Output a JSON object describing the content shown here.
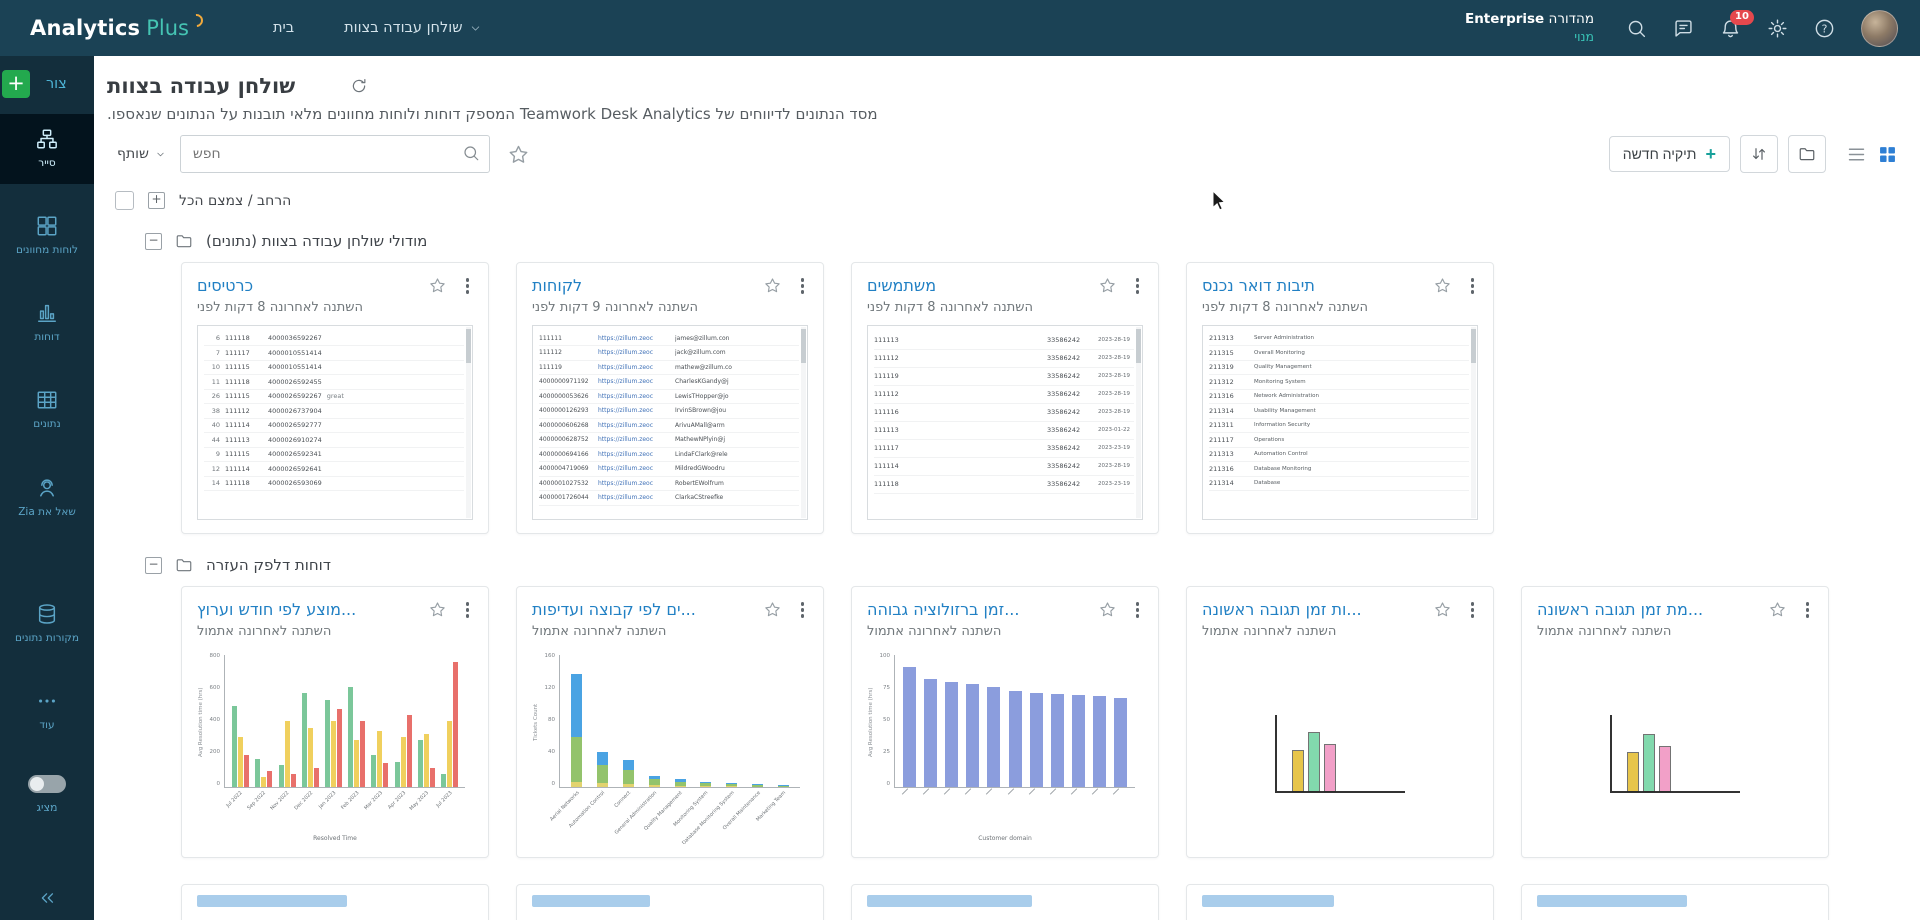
{
  "topbar": {
    "logo_part1": "Analytics",
    "logo_part2": "Plus",
    "nav_home": "בית",
    "nav_workspace": "שולחן עבודה בצוות",
    "edition_word": "מהדורה",
    "edition_name": "Enterprise",
    "edition_sub": "מנוי",
    "notification_count": "10"
  },
  "sidebar": {
    "create_label": "צור",
    "items": [
      {
        "id": "explorer",
        "icon": "explorer-icon",
        "label": "סייר",
        "active": true,
        "gap_before": false
      },
      {
        "id": "dashboards",
        "icon": "dashboards-icon",
        "label": "לוחות מחוונים",
        "active": false,
        "gap_before": false
      },
      {
        "id": "reports",
        "icon": "reports-icon",
        "label": "דוחות",
        "active": false,
        "gap_before": false
      },
      {
        "id": "data",
        "icon": "data-icon",
        "label": "נתונים",
        "active": false,
        "gap_before": false
      },
      {
        "id": "ask-zia",
        "icon": "zia-icon",
        "label": "שאל את Zia",
        "active": false,
        "gap_before": false
      },
      {
        "id": "datasources",
        "icon": "datasources-icon",
        "label": "מקורות נתונים",
        "active": false,
        "gap_before": true
      },
      {
        "id": "more",
        "icon": "more-icon",
        "label": "עוד",
        "active": false,
        "gap_before": false
      }
    ],
    "toggle_label": "מציג"
  },
  "page": {
    "title": "שולחן עבודה בצוות",
    "subtitle": "מסד הנתונים לדיווחים של Teamwork Desk Analytics המספק דוחות ולוחות מחוונים מלאי תובנות על הנתונים שנאספו."
  },
  "toolbar": {
    "filter_label": "שותף",
    "search_placeholder": "חפש",
    "new_folder_label": "תיקיה חדשה",
    "expand_collapse_label": "הרחב / צמצם הכל"
  },
  "sections": [
    {
      "title": "מודולי שולחן עבודה בצוות (נתונים)",
      "cards": [
        {
          "title": "כרטיסים",
          "subtitle": "השתנה לאחרונה 8 דקות לפני",
          "thumb": {
            "type": "table",
            "kind": "tickets",
            "rows": [
              [
                "6",
                "111118",
                "4000036592267",
                ""
              ],
              [
                "7",
                "111117",
                "4000010551414",
                ""
              ],
              [
                "10",
                "111115",
                "4000010551414",
                ""
              ],
              [
                "11",
                "111118",
                "4000026592455",
                ""
              ],
              [
                "26",
                "111115",
                "4000026592267",
                "great"
              ],
              [
                "38",
                "111112",
                "4000026737904",
                ""
              ],
              [
                "40",
                "111114",
                "4000026592777",
                ""
              ],
              [
                "44",
                "111113",
                "4000026910274",
                ""
              ],
              [
                "9",
                "111115",
                "4000026592341",
                ""
              ],
              [
                "12",
                "111114",
                "4000026592641",
                ""
              ],
              [
                "14",
                "111118",
                "4000026593069",
                ""
              ]
            ]
          }
        },
        {
          "title": "לקוחות",
          "subtitle": "השתנה לאחרונה 9 דקות לפני",
          "thumb": {
            "type": "table",
            "kind": "customers",
            "rows": [
              [
                "111111",
                "https://zillum.zeoc",
                "james@zillum.con"
              ],
              [
                "111112",
                "https://zillum.zeoc",
                "jack@zillum.com"
              ],
              [
                "111119",
                "https://zillum.zeoc",
                "mathew@zillum.co"
              ],
              [
                "4000000971192",
                "https://zillum.zeoc",
                "CharlesKGandy@j"
              ],
              [
                "4000000053626",
                "https://zillum.zeoc",
                "LewisTHopper@jo"
              ],
              [
                "4000000126293",
                "https://zillum.zeoc",
                "IrvinSBrown@jou"
              ],
              [
                "4000000606268",
                "https://zillum.zeoc",
                "ArivuAMall@arm"
              ],
              [
                "4000000628752",
                "https://zillum.zeoc",
                "MathewNPlyin@j"
              ],
              [
                "4000000694166",
                "https://zillum.zeoc",
                "LindaFClark@rele"
              ],
              [
                "4000004719069",
                "https://zillum.zeoc",
                "MildredGWoodru"
              ],
              [
                "4000001027532",
                "https://zillum.zeoc",
                "RobertEWolfrum"
              ],
              [
                "4000001726044",
                "https://zillum.zeoc",
                "ClarkaCStreefke"
              ]
            ]
          }
        },
        {
          "title": "משתמשים",
          "subtitle": "השתנה לאחרונה 8 דקות לפני",
          "thumb": {
            "type": "table",
            "kind": "users",
            "rows": [
              [
                "111113",
                "33586242",
                "2023-28-19"
              ],
              [
                "111112",
                "33586242",
                "2023-28-19"
              ],
              [
                "111119",
                "33586242",
                "2023-28-19"
              ],
              [
                "111112",
                "33586242",
                "2023-28-19"
              ],
              [
                "111116",
                "33586242",
                "2023-28-19"
              ],
              [
                "111113",
                "33586242",
                "2023-01-22"
              ],
              [
                "111117",
                "33586242",
                "2023-23-19"
              ],
              [
                "111114",
                "33586242",
                "2023-28-19"
              ],
              [
                "111118",
                "33586242",
                "2023-23-19"
              ]
            ]
          }
        },
        {
          "title": "תיבות דואר נכנס",
          "subtitle": "השתנה לאחרונה 8 דקות לפני",
          "thumb": {
            "type": "table",
            "kind": "inbox",
            "rows": [
              [
                "211313",
                "Server Administration"
              ],
              [
                "211315",
                "Overall Monitoring"
              ],
              [
                "211319",
                "Quality Management"
              ],
              [
                "211312",
                "Monitoring System"
              ],
              [
                "211316",
                "Network Administration"
              ],
              [
                "211314",
                "Usability Management"
              ],
              [
                "211311",
                "Information Security"
              ],
              [
                "211117",
                "Operations"
              ],
              [
                "211313",
                "Automation Control"
              ],
              [
                "211316",
                "Database Monitoring"
              ],
              [
                "211314",
                "Database"
              ]
            ]
          }
        }
      ]
    },
    {
      "title": "דוחות דלפק העזרה",
      "cards": [
        {
          "title": "...מוצע לפי חודש וערוץ",
          "subtitle": "השתנה לאחרונה אתמול",
          "thumb": {
            "type": "grouped",
            "ylabel": "Avg Resolution time (hrs)",
            "xlabel": "Resolved Time",
            "ymax": 850,
            "yticks": [
              "800",
              "600",
              "400",
              "200",
              "0"
            ],
            "colors": [
              "#7bc79a",
              "#f0d05e",
              "#e8706b"
            ],
            "groups": [
              [
                520,
                320,
                200
              ],
              [
                180,
                60,
                100
              ],
              [
                140,
                420,
                80
              ],
              [
                600,
                380,
                120
              ],
              [
                560,
                420,
                500
              ],
              [
                640,
                300,
                420
              ],
              [
                200,
                360,
                150
              ],
              [
                160,
                320,
                460
              ],
              [
                300,
                340,
                120
              ],
              [
                80,
                420,
                800
              ]
            ],
            "xticklabels": [
              "Jul 2022",
              "Sep 2022",
              "Nov 2022",
              "Dec 2022",
              "Jan 2023",
              "Feb 2023",
              "Mar 2023",
              "Apr 2023",
              "May 2023",
              "Jul 2023"
            ]
          }
        },
        {
          "title": "...ים לפי קבוצה ועדיפות",
          "subtitle": "השתנה לאחרונה אתמול",
          "thumb": {
            "type": "stacked",
            "ylabel": "Tickets Count",
            "ymax": 160,
            "yticks": [
              "160",
              "120",
              "80",
              "40",
              "0"
            ],
            "colors": [
              "#e2d36e",
              "#93c36c",
              "#4aa3e3"
            ],
            "stacks": [
              [
                6,
                55,
                78
              ],
              [
                4,
                22,
                16
              ],
              [
                3,
                18,
                12
              ],
              [
                2,
                7,
                4
              ],
              [
                1,
                5,
                3
              ],
              [
                1,
                3,
                2
              ],
              [
                1,
                2,
                1
              ],
              [
                0,
                2,
                1
              ],
              [
                0,
                1,
                1
              ]
            ],
            "xticklabels": [
              "Aerial Networks",
              "Automation Control",
              "Connect",
              "General Administration",
              "Quality Management",
              "Monitoring System",
              "Database Monitoring System",
              "Overall Maintenance",
              "Marketing Team"
            ]
          }
        },
        {
          "title": "...זמן ברזולוציה גבוהה",
          "subtitle": "השתנה לאחרונה אתמול",
          "thumb": {
            "type": "bars",
            "ylabel": "Avg Resolution time (hrs)",
            "xlabel": "Customer domain",
            "ymax": 110,
            "yticks": [
              "100",
              "75",
              "50",
              "25",
              "0"
            ],
            "color": "#8b9ddd",
            "values": [
              100,
              90,
              87,
              85,
              83,
              80,
              78,
              77,
              76,
              75,
              74
            ]
          }
        },
        {
          "title": "...ות זמן תגובה ראשונה",
          "subtitle": "השתנה לאחרונה אתמול",
          "thumb": {
            "type": "mini",
            "bars": [
              [
                "#e7c54b",
                40
              ],
              [
                "#82d9ad",
                58
              ],
              [
                "#f2a0c8",
                46
              ]
            ]
          }
        },
        {
          "title": "...מת זמן תגובה ראשונה",
          "subtitle": "השתנה לאחרונה אתמול",
          "thumb": {
            "type": "mini",
            "bars": [
              [
                "#e7c54b",
                38
              ],
              [
                "#82d9ad",
                56
              ],
              [
                "#f2a0c8",
                44
              ]
            ]
          }
        }
      ]
    }
  ],
  "partial_row": {
    "count": 5
  },
  "colors": {
    "topbar_bg": "#1b4255",
    "sidebar_bg": "#132e3c",
    "accent_teal": "#45c4b3",
    "link_blue": "#2180c4",
    "badge_red": "#e5484d",
    "active_view_blue": "#2e7fd4",
    "create_green": "#23a94e"
  }
}
